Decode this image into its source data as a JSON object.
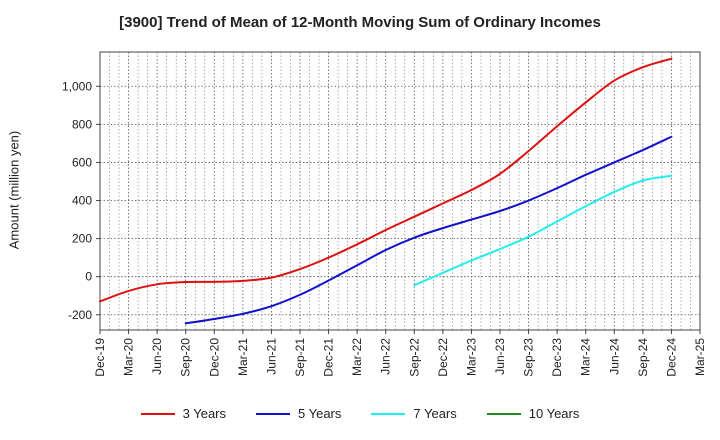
{
  "chart_data": {
    "type": "line",
    "title": "[3900]  Trend of Mean of 12-Month Moving Sum of Ordinary Incomes",
    "xlabel": "",
    "ylabel": "Amount (million yen)",
    "categories": [
      "Dec-19",
      "Mar-20",
      "Jun-20",
      "Sep-20",
      "Dec-20",
      "Mar-21",
      "Jun-21",
      "Sep-21",
      "Dec-21",
      "Mar-22",
      "Jun-22",
      "Sep-22",
      "Dec-22",
      "Mar-23",
      "Jun-23",
      "Sep-23",
      "Dec-23",
      "Mar-24",
      "Jun-24",
      "Sep-24",
      "Dec-24",
      "Mar-25"
    ],
    "yticks": [
      -200,
      0,
      200,
      400,
      600,
      800,
      1000
    ],
    "ytick_labels": [
      "-200",
      "0",
      "200",
      "400",
      "600",
      "800",
      "1,000"
    ],
    "ylim": [
      -280,
      1180
    ],
    "grid": true,
    "series": [
      {
        "name": "3 Years",
        "color": "#dd1111",
        "values": [
          -130,
          -75,
          -40,
          -28,
          -27,
          -22,
          -5,
          40,
          100,
          170,
          245,
          315,
          385,
          455,
          540,
          660,
          790,
          915,
          1030,
          1100,
          1145,
          null
        ]
      },
      {
        "name": "5 Years",
        "color": "#1111cc",
        "values": [
          null,
          null,
          null,
          -245,
          -222,
          -195,
          -155,
          -95,
          -20,
          60,
          140,
          205,
          255,
          300,
          345,
          400,
          465,
          535,
          600,
          665,
          735,
          null
        ]
      },
      {
        "name": "7 Years",
        "color": "#22eeee",
        "values": [
          null,
          null,
          null,
          null,
          null,
          null,
          null,
          null,
          null,
          null,
          null,
          -45,
          20,
          85,
          145,
          210,
          290,
          370,
          445,
          505,
          530,
          null
        ]
      },
      {
        "name": "10 Years",
        "color": "#228822",
        "values": [
          null,
          null,
          null,
          null,
          null,
          null,
          null,
          null,
          null,
          null,
          null,
          null,
          null,
          null,
          null,
          null,
          null,
          null,
          null,
          null,
          null,
          null
        ]
      }
    ]
  }
}
